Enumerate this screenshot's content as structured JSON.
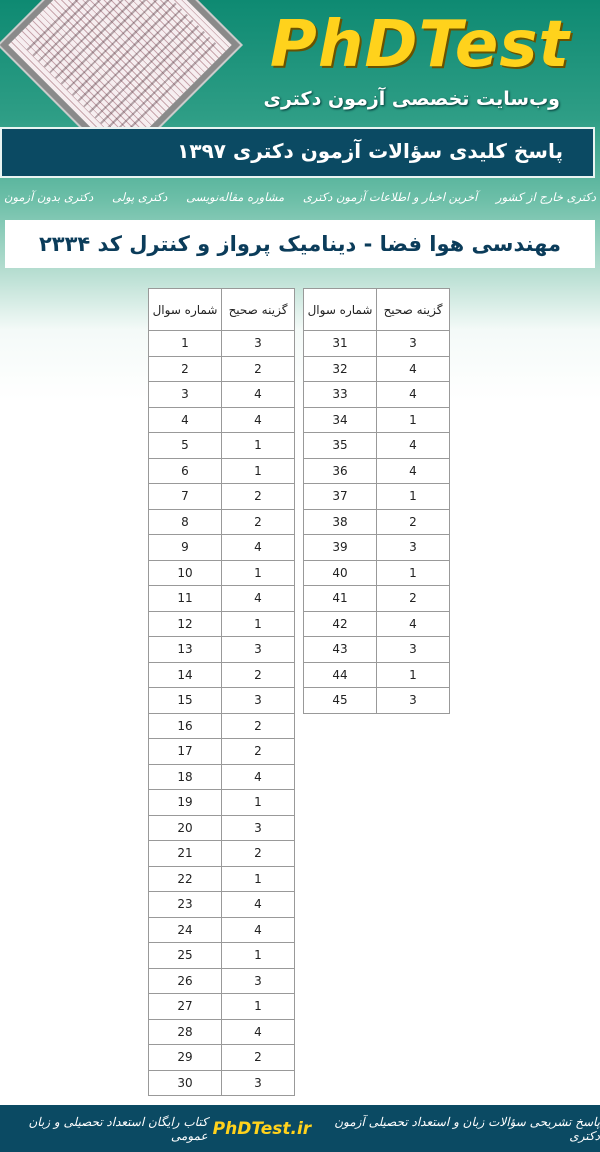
{
  "header": {
    "logo": "PhDTest",
    "subtitle": "وب‌سایت تخصصی آزمون دکتری",
    "banner": "پاسخ کلیدی سؤالات آزمون دکتری ۱۳۹۷"
  },
  "nav": [
    "دکتری بدون آزمون",
    "دکتری پولی",
    "مشاوره مقاله‌نویسی",
    "آخرین اخبار و اطلاعات آزمون دکتری",
    "دکتری خارج از کشور"
  ],
  "title": "مهندسی هوا فضا - دینامیک پرواز و کنترل کد ۲۳۳۴",
  "table_headers": {
    "question": "شماره سوال",
    "answer": "گزینه صحیح"
  },
  "answers": [
    3,
    2,
    4,
    4,
    1,
    1,
    2,
    2,
    4,
    1,
    4,
    1,
    3,
    2,
    3,
    2,
    2,
    4,
    1,
    3,
    2,
    1,
    4,
    4,
    1,
    3,
    1,
    4,
    2,
    3,
    3,
    4,
    4,
    1,
    4,
    4,
    1,
    2,
    3,
    1,
    2,
    4,
    3,
    1,
    3
  ],
  "footer": {
    "left": "پاسخ تشریحی سؤالات زبان و استعداد تحصیلی آزمون دکتری",
    "brand": "PhDTest.ir",
    "right": "کتاب رایگان استعداد تحصیلی و زبان عمومی"
  }
}
